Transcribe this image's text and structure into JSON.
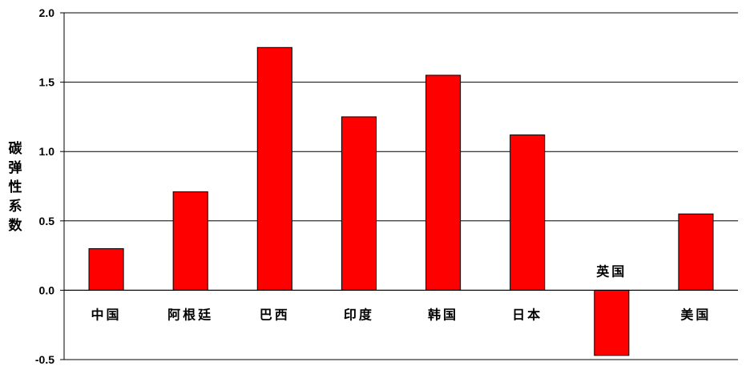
{
  "chart_data": {
    "type": "bar",
    "ylabel": "碳弹性系数",
    "ylim": [
      -0.5,
      2.0
    ],
    "yticks": [
      "2.0",
      "1.5",
      "1.0",
      "0.5",
      "0.0",
      "-0.5"
    ],
    "ytick_values": [
      2.0,
      1.5,
      1.0,
      0.5,
      0.0,
      -0.5
    ],
    "grid": true,
    "categories": [
      "中国",
      "阿根廷",
      "巴西",
      "印度",
      "韩国",
      "日本",
      "英国",
      "美国"
    ],
    "values": [
      0.3,
      0.71,
      1.75,
      1.25,
      1.55,
      1.12,
      -0.47,
      0.55
    ],
    "bar_color": "#ff0000",
    "bar_edge_color": "#000000"
  }
}
